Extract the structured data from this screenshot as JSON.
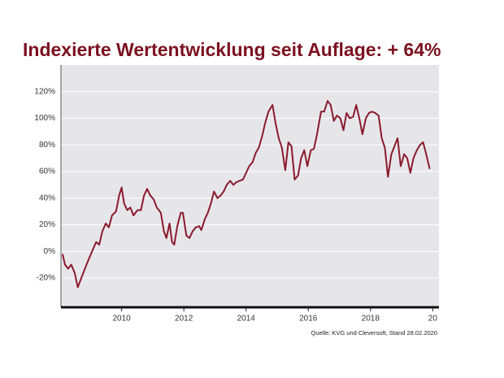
{
  "chart_data": {
    "type": "line",
    "title": "Indexierte Wertentwicklung seit Auflage: + 64%",
    "source": "Quelle: KVG und Cleversoft, Stand 28.02.2020",
    "color": "#8b1a2b",
    "grid": true,
    "xlim": [
      2008.05,
      2020.2
    ],
    "xticks": [
      2010,
      2012,
      2014,
      2016,
      2018,
      {
        "value": 2020,
        "label": "20"
      }
    ],
    "ylim": [
      -42,
      140
    ],
    "yticks": [
      {
        "value": -20,
        "label": "-20%"
      },
      {
        "value": 0,
        "label": "0%"
      },
      {
        "value": 20,
        "label": "20%"
      },
      {
        "value": 40,
        "label": "40%"
      },
      {
        "value": 60,
        "label": "60%"
      },
      {
        "value": 80,
        "label": "80%"
      },
      {
        "value": 100,
        "label": "100%"
      },
      {
        "value": 120,
        "label": "120%"
      }
    ],
    "x": [
      2008.1,
      2008.18,
      2008.28,
      2008.38,
      2008.49,
      2008.59,
      2008.72,
      2008.87,
      2009.03,
      2009.18,
      2009.28,
      2009.38,
      2009.49,
      2009.59,
      2009.69,
      2009.82,
      2009.92,
      2010.0,
      2010.08,
      2010.18,
      2010.28,
      2010.38,
      2010.51,
      2010.62,
      2010.72,
      2010.82,
      2010.92,
      2011.03,
      2011.13,
      2011.26,
      2011.36,
      2011.44,
      2011.54,
      2011.62,
      2011.69,
      2011.79,
      2011.9,
      2011.97,
      2012.08,
      2012.18,
      2012.28,
      2012.38,
      2012.49,
      2012.56,
      2012.67,
      2012.77,
      2012.87,
      2012.97,
      2013.08,
      2013.18,
      2013.28,
      2013.38,
      2013.49,
      2013.59,
      2013.69,
      2013.79,
      2013.9,
      2014.0,
      2014.1,
      2014.21,
      2014.31,
      2014.41,
      2014.51,
      2014.62,
      2014.72,
      2014.85,
      2014.95,
      2015.05,
      2015.15,
      2015.26,
      2015.36,
      2015.46,
      2015.56,
      2015.67,
      2015.77,
      2015.87,
      2015.97,
      2016.08,
      2016.18,
      2016.28,
      2016.41,
      2016.51,
      2016.62,
      2016.72,
      2016.82,
      2016.92,
      2017.03,
      2017.13,
      2017.23,
      2017.33,
      2017.44,
      2017.54,
      2017.64,
      2017.74,
      2017.85,
      2017.95,
      2018.05,
      2018.15,
      2018.26,
      2018.36,
      2018.46,
      2018.56,
      2018.67,
      2018.77,
      2018.87,
      2018.97,
      2019.08,
      2019.18,
      2019.28,
      2019.38,
      2019.49,
      2019.59,
      2019.69,
      2019.79,
      2019.9
    ],
    "values": [
      -2,
      -10,
      -13,
      -10,
      -16,
      -27,
      -19,
      -10,
      -1,
      7,
      5,
      15,
      21,
      18,
      27,
      30,
      42,
      48,
      36,
      31,
      33,
      27,
      31,
      31,
      42,
      47,
      42,
      39,
      33,
      29,
      15,
      10,
      21,
      7,
      5,
      19,
      29,
      29,
      12,
      10,
      15,
      18,
      19,
      16,
      24,
      29,
      36,
      45,
      40,
      42,
      45,
      50,
      53,
      50,
      52,
      53,
      54,
      59,
      64,
      67,
      74,
      78,
      86,
      97,
      105,
      110,
      96,
      85,
      78,
      61,
      82,
      79,
      54,
      57,
      70,
      76,
      64,
      76,
      77,
      88,
      105,
      105,
      113,
      110,
      98,
      102,
      100,
      91,
      104,
      100,
      101,
      110,
      100,
      88,
      100,
      104,
      105,
      104,
      102,
      85,
      78,
      56,
      73,
      79,
      85,
      64,
      73,
      70,
      59,
      70,
      76,
      80,
      82,
      73,
      62
    ]
  }
}
